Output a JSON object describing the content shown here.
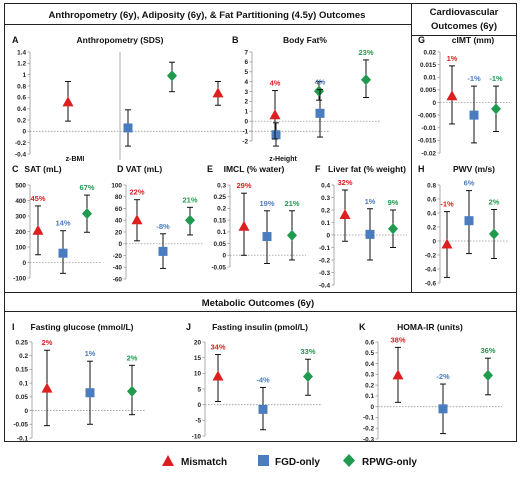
{
  "sections": {
    "top_title": "Anthropometry (6y), Adiposity (6y), & Fat Partitioning (4.5y) Outcomes",
    "cardio_title_1": "Cardiovascular",
    "cardio_title_2": "Outcomes (6y)",
    "metabolic_title": "Metabolic Outcomes (6y)"
  },
  "legend": [
    {
      "label": "Mismatch",
      "color": "#dd1f1f",
      "shape": "triangle"
    },
    {
      "label": "FGD-only",
      "color": "#4a7cc0",
      "shape": "square"
    },
    {
      "label": "RPWG-only",
      "color": "#1f9a4f",
      "shape": "diamond"
    }
  ],
  "colors": {
    "mismatch": "#dd1f1f",
    "fgd": "#4a7cc0",
    "rpwg": "#1f9a4f",
    "whisker": "#111111",
    "zero_line": "#9a9a9a"
  },
  "chart_data": [
    {
      "id": "A",
      "type": "scatter",
      "title": "Anthropometry (SDS)",
      "ylim": [
        -0.4,
        1.4
      ],
      "yticks": [
        "-0.4",
        "-0.2",
        "0",
        "0.2",
        "0.4",
        "0.6",
        "0.8",
        "1",
        "1.2",
        "1.4"
      ],
      "split_categories": [
        "z-BMI",
        "z-Height"
      ],
      "points": [
        {
          "series": "Mismatch",
          "y": 0.51,
          "lo": 0.18,
          "hi": 0.88,
          "label": ""
        },
        {
          "series": "FGD-only",
          "y": 0.06,
          "lo": -0.26,
          "hi": 0.38,
          "label": ""
        },
        {
          "series": "RPWG-only",
          "y": 0.98,
          "lo": 0.7,
          "hi": 1.22,
          "label": ""
        },
        {
          "series": "Mismatch",
          "y": 0.67,
          "lo": 0.46,
          "hi": 0.88,
          "label": ""
        },
        {
          "series": "FGD-only",
          "y": -0.06,
          "lo": -0.26,
          "hi": 0.15,
          "label": ""
        },
        {
          "series": "RPWG-only",
          "y": 0.71,
          "lo": 0.55,
          "hi": 0.88,
          "label": ""
        }
      ]
    },
    {
      "id": "B",
      "type": "scatter",
      "title": "Body Fat%",
      "ylim": [
        -2,
        7
      ],
      "yticks": [
        "-2",
        "-1",
        "0",
        "1",
        "2",
        "3",
        "4",
        "5",
        "6",
        "7"
      ],
      "points": [
        {
          "series": "Mismatch",
          "y": 0.6,
          "lo": -1.8,
          "hi": 3.1,
          "label": "4%"
        },
        {
          "series": "FGD-only",
          "y": 0.8,
          "lo": -1.6,
          "hi": 3.2,
          "label": "4%"
        },
        {
          "series": "RPWG-only",
          "y": 4.2,
          "lo": 2.4,
          "hi": 6.2,
          "label": "23%"
        }
      ]
    },
    {
      "id": "G",
      "type": "scatter",
      "title": "cIMT (mm)",
      "ylim": [
        -0.02,
        0.02
      ],
      "yticks": [
        "-0.02",
        "-0.015",
        "-0.01",
        "-0.005",
        "0",
        "0.005",
        "0.01",
        "0.015",
        "0.02"
      ],
      "points": [
        {
          "series": "Mismatch",
          "y": 0.0025,
          "lo": -0.0085,
          "hi": 0.0145,
          "label": "1%"
        },
        {
          "series": "FGD-only",
          "y": -0.005,
          "lo": -0.016,
          "hi": 0.0065,
          "label": "-1%"
        },
        {
          "series": "RPWG-only",
          "y": -0.0025,
          "lo": -0.0115,
          "hi": 0.0065,
          "label": "-1%"
        }
      ]
    },
    {
      "id": "C",
      "type": "scatter",
      "title": "SAT (mL)",
      "ylim": [
        -100,
        500
      ],
      "yticks": [
        "-100",
        "0",
        "100",
        "200",
        "300",
        "400",
        "500"
      ],
      "points": [
        {
          "series": "Mismatch",
          "y": 205,
          "lo": 50,
          "hi": 365,
          "label": "45%"
        },
        {
          "series": "FGD-only",
          "y": 60,
          "lo": -70,
          "hi": 205,
          "label": "14%"
        },
        {
          "series": "RPWG-only",
          "y": 315,
          "lo": 195,
          "hi": 435,
          "label": "67%"
        }
      ]
    },
    {
      "id": "D",
      "type": "scatter",
      "title": "VAT (mL)",
      "ylim": [
        -60,
        100
      ],
      "yticks": [
        "-60",
        "-40",
        "-20",
        "0",
        "20",
        "40",
        "60",
        "80",
        "100"
      ],
      "points": [
        {
          "series": "Mismatch",
          "y": 40,
          "lo": 5,
          "hi": 75,
          "label": "22%"
        },
        {
          "series": "FGD-only",
          "y": -13,
          "lo": -42,
          "hi": 17,
          "label": "-8%"
        },
        {
          "series": "RPWG-only",
          "y": 40,
          "lo": 15,
          "hi": 62,
          "label": "21%"
        }
      ]
    },
    {
      "id": "E",
      "type": "scatter",
      "title": "IMCL (% water)",
      "ylim": [
        -0.05,
        0.3
      ],
      "yticks": [
        "-0.05",
        "0",
        "0.05",
        "0.1",
        "0.15",
        "0.2",
        "0.25",
        "0.3"
      ],
      "points": [
        {
          "series": "Mismatch",
          "y": 0.122,
          "lo": 0.0,
          "hi": 0.265,
          "label": "29%"
        },
        {
          "series": "FGD-only",
          "y": 0.08,
          "lo": -0.035,
          "hi": 0.19,
          "label": "19%"
        },
        {
          "series": "RPWG-only",
          "y": 0.085,
          "lo": -0.02,
          "hi": 0.19,
          "label": "21%"
        }
      ]
    },
    {
      "id": "F",
      "type": "scatter",
      "title": "Liver fat (% weight)",
      "ylim": [
        -0.4,
        0.4
      ],
      "yticks": [
        "-0.4",
        "-0.3",
        "-0.2",
        "-0.1",
        "0",
        "0.1",
        "0.2",
        "0.3",
        "0.4"
      ],
      "points": [
        {
          "series": "Mismatch",
          "y": 0.16,
          "lo": -0.05,
          "hi": 0.36,
          "label": "32%"
        },
        {
          "series": "FGD-only",
          "y": 0.005,
          "lo": -0.2,
          "hi": 0.21,
          "label": "1%"
        },
        {
          "series": "RPWG-only",
          "y": 0.05,
          "lo": -0.1,
          "hi": 0.2,
          "label": "9%"
        }
      ]
    },
    {
      "id": "H",
      "type": "scatter",
      "title": "PWV (m/s)",
      "ylim": [
        -0.6,
        0.8
      ],
      "yticks": [
        "-0.6",
        "-0.4",
        "-0.2",
        "0",
        "0.2",
        "0.4",
        "0.6",
        "0.8"
      ],
      "points": [
        {
          "series": "Mismatch",
          "y": -0.05,
          "lo": -0.52,
          "hi": 0.42,
          "label": "-1%"
        },
        {
          "series": "FGD-only",
          "y": 0.29,
          "lo": -0.18,
          "hi": 0.72,
          "label": "6%"
        },
        {
          "series": "RPWG-only",
          "y": 0.1,
          "lo": -0.25,
          "hi": 0.45,
          "label": "2%"
        }
      ]
    },
    {
      "id": "I",
      "type": "scatter",
      "title": "Fasting glucose (mmol/L)",
      "ylim": [
        -0.1,
        0.25
      ],
      "yticks": [
        "-0.1",
        "-0.05",
        "0",
        "0.05",
        "0.1",
        "0.15",
        "0.2",
        "0.25"
      ],
      "points": [
        {
          "series": "Mismatch",
          "y": 0.08,
          "lo": -0.055,
          "hi": 0.22,
          "label": "2%"
        },
        {
          "series": "FGD-only",
          "y": 0.065,
          "lo": -0.05,
          "hi": 0.18,
          "label": "1%"
        },
        {
          "series": "RPWG-only",
          "y": 0.07,
          "lo": -0.015,
          "hi": 0.165,
          "label": "2%"
        }
      ]
    },
    {
      "id": "J",
      "type": "scatter",
      "title": "Fasting insulin (pmol/L)",
      "ylim": [
        -10,
        20
      ],
      "yticks": [
        "-10",
        "-5",
        "0",
        "5",
        "10",
        "15",
        "20"
      ],
      "points": [
        {
          "series": "Mismatch",
          "y": 9,
          "lo": 1,
          "hi": 16,
          "label": "34%"
        },
        {
          "series": "FGD-only",
          "y": -1.5,
          "lo": -8,
          "hi": 5.5,
          "label": "-4%"
        },
        {
          "series": "RPWG-only",
          "y": 9,
          "lo": 3,
          "hi": 14.5,
          "label": "33%"
        }
      ]
    },
    {
      "id": "K",
      "type": "scatter",
      "title": "HOMA-IR (units)",
      "ylim": [
        -0.3,
        0.6
      ],
      "yticks": [
        "-0.3",
        "-0.2",
        "-0.1",
        "0",
        "0.1",
        "0.2",
        "0.3",
        "0.4",
        "0.5",
        "0.6"
      ],
      "points": [
        {
          "series": "Mismatch",
          "y": 0.29,
          "lo": 0.04,
          "hi": 0.55,
          "label": "38%"
        },
        {
          "series": "FGD-only",
          "y": -0.02,
          "lo": -0.25,
          "hi": 0.21,
          "label": "-2%"
        },
        {
          "series": "RPWG-only",
          "y": 0.29,
          "lo": 0.11,
          "hi": 0.45,
          "label": "36%"
        }
      ]
    }
  ]
}
